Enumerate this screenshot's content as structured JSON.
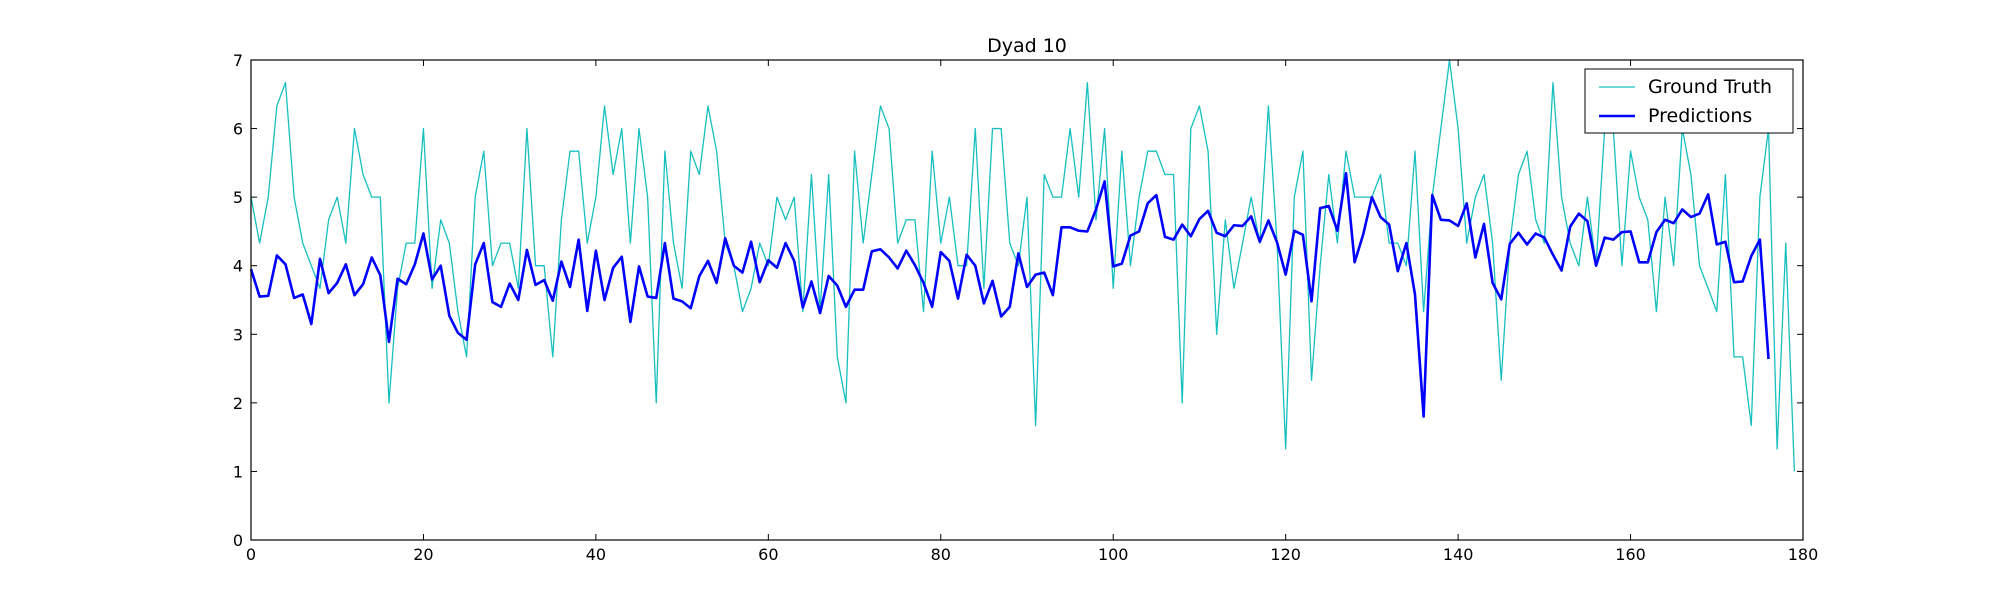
{
  "chart_data": {
    "type": "line",
    "title": "Dyad 10",
    "xlabel": "",
    "ylabel": "",
    "xlim": [
      0,
      180
    ],
    "ylim": [
      0,
      7
    ],
    "xticks": [
      0,
      20,
      40,
      60,
      80,
      100,
      120,
      140,
      160,
      180
    ],
    "yticks": [
      0,
      1,
      2,
      3,
      4,
      5,
      6,
      7
    ],
    "grid": false,
    "legend_position": "top-right",
    "series": [
      {
        "name": "Ground Truth",
        "color": "#17bfbf",
        "line_width": "thin",
        "x_start": 0,
        "values": [
          5.0,
          4.33,
          5.0,
          6.33,
          6.67,
          5.0,
          4.33,
          4.0,
          3.67,
          4.67,
          5.0,
          4.33,
          6.0,
          5.33,
          5.0,
          5.0,
          2.0,
          3.67,
          4.33,
          4.33,
          6.0,
          3.67,
          4.67,
          4.33,
          3.33,
          2.67,
          5.0,
          5.67,
          4.0,
          4.33,
          4.33,
          3.67,
          6.0,
          4.0,
          4.0,
          2.67,
          4.67,
          5.67,
          5.67,
          4.33,
          5.0,
          6.33,
          5.33,
          6.0,
          4.33,
          6.0,
          5.0,
          2.0,
          5.67,
          4.33,
          3.67,
          5.67,
          5.33,
          6.33,
          5.67,
          4.33,
          4.0,
          3.33,
          3.67,
          4.33,
          4.0,
          5.0,
          4.67,
          5.0,
          3.33,
          5.33,
          3.33,
          5.33,
          2.67,
          2.0,
          5.67,
          4.33,
          5.33,
          6.33,
          6.0,
          4.33,
          4.67,
          4.67,
          3.33,
          5.67,
          4.33,
          5.0,
          4.0,
          4.0,
          6.0,
          3.67,
          6.0,
          6.0,
          4.33,
          4.0,
          5.0,
          1.67,
          5.33,
          5.0,
          5.0,
          6.0,
          5.0,
          6.67,
          4.67,
          6.0,
          3.67,
          5.67,
          4.0,
          5.0,
          5.67,
          5.67,
          5.33,
          5.33,
          2.0,
          6.0,
          6.33,
          5.67,
          3.0,
          4.67,
          3.67,
          4.33,
          5.0,
          4.33,
          6.33,
          4.33,
          1.33,
          5.0,
          5.67,
          2.33,
          4.0,
          5.33,
          4.33,
          5.67,
          5.0,
          5.0,
          5.0,
          5.33,
          4.33,
          4.33,
          4.0,
          5.67,
          3.33,
          5.0,
          6.0,
          7.0,
          6.0,
          4.33,
          5.0,
          5.33,
          4.33,
          2.33,
          4.33,
          5.33,
          5.67,
          4.67,
          4.33,
          6.67,
          5.0,
          4.33,
          4.0,
          5.0,
          4.0,
          6.0,
          6.0,
          4.0,
          5.67,
          5.0,
          4.67,
          3.33,
          5.0,
          4.0,
          6.0,
          5.33,
          4.0,
          3.67,
          3.33,
          5.33,
          2.67,
          2.67,
          1.67,
          5.0,
          6.0,
          1.33,
          4.33,
          1.0
        ]
      },
      {
        "name": "Predictions",
        "color": "#0000ff",
        "line_width": "thick",
        "x_start": 0,
        "values": [
          3.95,
          3.55,
          3.56,
          4.15,
          4.02,
          3.53,
          3.58,
          3.15,
          4.1,
          3.6,
          3.75,
          4.02,
          3.57,
          3.73,
          4.12,
          3.86,
          2.89,
          3.81,
          3.73,
          4.02,
          4.47,
          3.8,
          4.0,
          3.27,
          3.02,
          2.92,
          4.02,
          4.33,
          3.47,
          3.4,
          3.74,
          3.5,
          4.23,
          3.72,
          3.79,
          3.49,
          4.06,
          3.69,
          4.38,
          3.34,
          4.22,
          3.5,
          3.97,
          4.13,
          3.18,
          3.99,
          3.55,
          3.53,
          4.33,
          3.52,
          3.48,
          3.38,
          3.85,
          4.07,
          3.75,
          4.4,
          4.0,
          3.9,
          4.35,
          3.76,
          4.08,
          3.97,
          4.33,
          4.07,
          3.39,
          3.77,
          3.31,
          3.85,
          3.71,
          3.4,
          3.65,
          3.65,
          4.21,
          4.24,
          4.12,
          3.96,
          4.22,
          4.01,
          3.75,
          3.4,
          4.2,
          4.07,
          3.52,
          4.16,
          4.0,
          3.45,
          3.78,
          3.26,
          3.4,
          4.18,
          3.69,
          3.87,
          3.9,
          3.57,
          4.56,
          4.56,
          4.51,
          4.5,
          4.82,
          5.23,
          3.99,
          4.03,
          4.44,
          4.5,
          4.91,
          5.03,
          4.42,
          4.38,
          4.6,
          4.43,
          4.68,
          4.8,
          4.48,
          4.43,
          4.59,
          4.58,
          4.72,
          4.35,
          4.66,
          4.34,
          3.87,
          4.51,
          4.45,
          3.48,
          4.84,
          4.87,
          4.51,
          5.35,
          4.05,
          4.46,
          5.0,
          4.71,
          4.6,
          3.92,
          4.33,
          3.58,
          1.8,
          5.03,
          4.67,
          4.66,
          4.58,
          4.91,
          4.12,
          4.61,
          3.75,
          3.51,
          4.32,
          4.48,
          4.31,
          4.47,
          4.41,
          4.16,
          3.93,
          4.57,
          4.76,
          4.65,
          4.0,
          4.41,
          4.38,
          4.49,
          4.5,
          4.05,
          4.05,
          4.49,
          4.67,
          4.62,
          4.82,
          4.71,
          4.76,
          5.04,
          4.31,
          4.35,
          3.76,
          3.77,
          4.14,
          4.38,
          2.64
        ]
      }
    ]
  }
}
